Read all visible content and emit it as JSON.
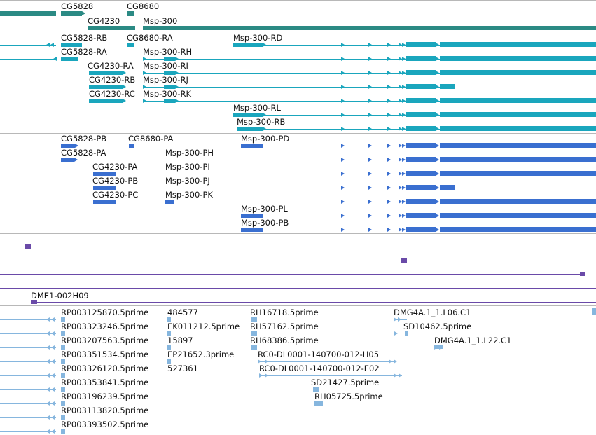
{
  "colors": {
    "gene": "#2b8a84",
    "transcript": "#1aa6bd",
    "protein": "#3a6fd0",
    "cdna": "#6a4aa8",
    "est": "#86b6de",
    "separator": "#b8b8b8"
  },
  "tracks": {
    "genes": {
      "labels": [
        "CG5828",
        "CG8680",
        "CG4230",
        "Msp-300"
      ]
    },
    "transcripts": {
      "labels": [
        "CG5828-RB",
        "CG8680-RA",
        "Msp-300-RD",
        "CG5828-RA",
        "Msp-300-RH",
        "CG4230-RA",
        "Msp-300-RI",
        "CG4230-RB",
        "Msp-300-RJ",
        "CG4230-RC",
        "Msp-300-RK",
        "Msp-300-RL",
        "Msp-300-RB"
      ]
    },
    "proteins": {
      "labels": [
        "CG5828-PB",
        "CG8680-PA",
        "Msp-300-PD",
        "CG5828-PA",
        "Msp-300-PH",
        "CG4230-PA",
        "Msp-300-PI",
        "CG4230-PB",
        "Msp-300-PJ",
        "CG4230-PC",
        "Msp-300-PK",
        "Msp-300-PL",
        "Msp-300-PB"
      ]
    },
    "cdna": {
      "labels": [
        "DME1-002H09"
      ]
    },
    "ests": {
      "labels": [
        "RP003125870.5prime",
        "484577",
        "RH16718.5prime",
        "DMG4A.1_1.L06.C1",
        "RP003323246.5prime",
        "EK011212.5prime",
        "RH57162.5prime",
        "SD10462.5prime",
        "RP003207563.5prime",
        "15897",
        "RH68386.5prime",
        "DMG4A.1_1.L22.C1",
        "RP003351534.5prime",
        "EP21652.3prime",
        "RC0-DL0001-140700-012-H05",
        "RP003326120.5prime",
        "527361",
        "RC0-DL0001-140700-012-E02",
        "RP003353841.5prime",
        "SD21427.5prime",
        "RP003196239.5prime",
        "RH05725.5prime",
        "RP003113820.5prime",
        "RP003393502.5prime"
      ]
    }
  }
}
